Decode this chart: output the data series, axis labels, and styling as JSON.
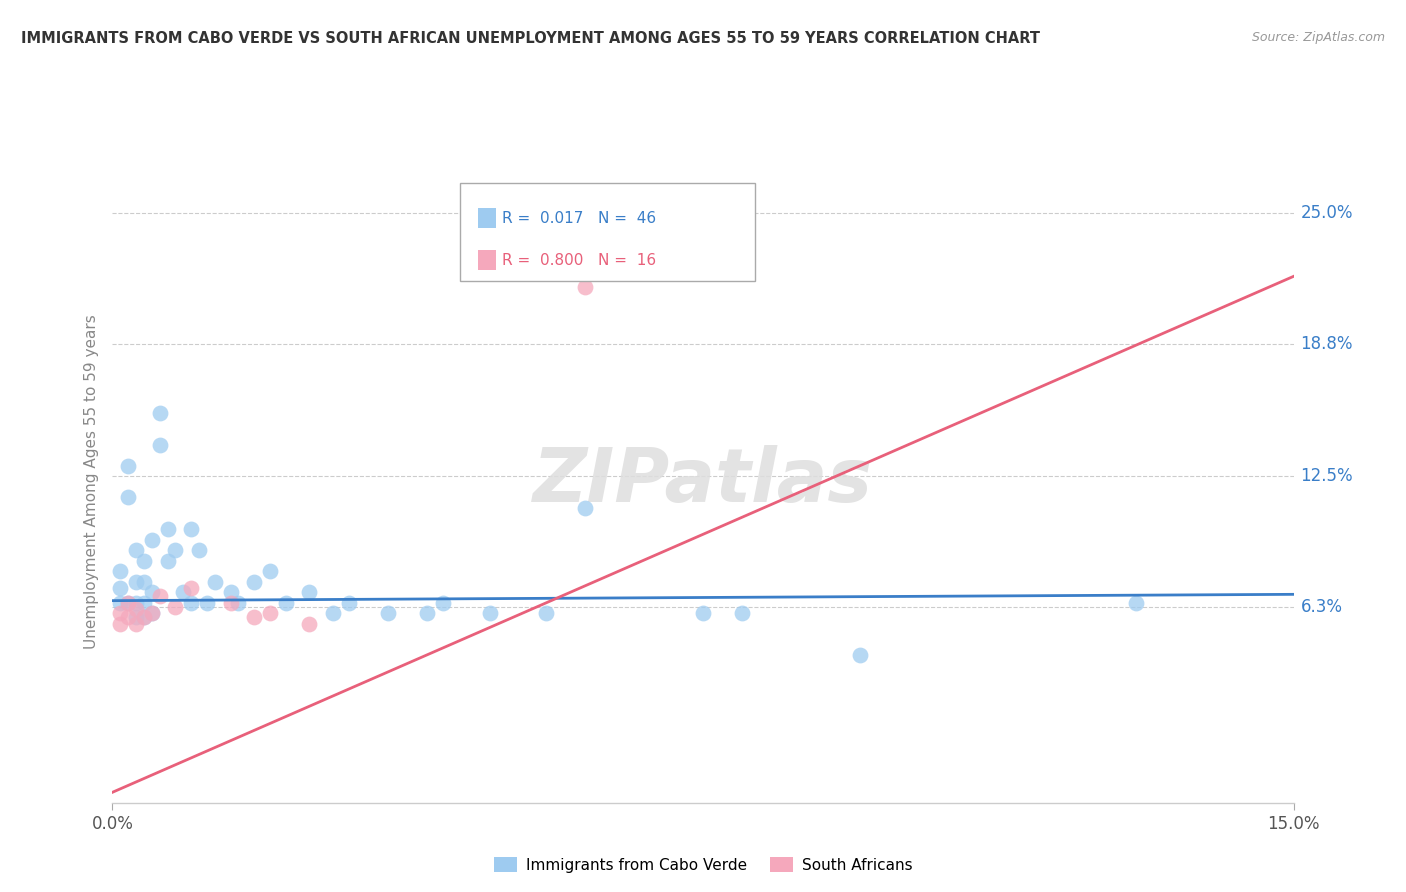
{
  "title": "IMMIGRANTS FROM CABO VERDE VS SOUTH AFRICAN UNEMPLOYMENT AMONG AGES 55 TO 59 YEARS CORRELATION CHART",
  "source": "Source: ZipAtlas.com",
  "ylabel": "Unemployment Among Ages 55 to 59 years",
  "xlim": [
    0.0,
    0.15
  ],
  "ylim": [
    -0.03,
    0.275
  ],
  "yticks": [
    0.063,
    0.125,
    0.188,
    0.25
  ],
  "ytick_labels": [
    "6.3%",
    "12.5%",
    "18.8%",
    "25.0%"
  ],
  "xticks": [
    0.0,
    0.15
  ],
  "xtick_labels": [
    "0.0%",
    "15.0%"
  ],
  "legend_label1": "Immigrants from Cabo Verde",
  "legend_label2": "South Africans",
  "R1": "0.017",
  "N1": "46",
  "R2": "0.800",
  "N2": "16",
  "color_blue": "#9ECBF0",
  "color_pink": "#F5A8BC",
  "line_blue": "#3A7EC8",
  "line_pink": "#E8607A",
  "watermark_color": "#DEDEDE",
  "blue_scatter_x": [
    0.001,
    0.001,
    0.001,
    0.002,
    0.002,
    0.002,
    0.003,
    0.003,
    0.003,
    0.003,
    0.004,
    0.004,
    0.004,
    0.004,
    0.005,
    0.005,
    0.005,
    0.006,
    0.006,
    0.007,
    0.007,
    0.008,
    0.009,
    0.01,
    0.01,
    0.011,
    0.012,
    0.013,
    0.015,
    0.016,
    0.018,
    0.02,
    0.022,
    0.025,
    0.028,
    0.03,
    0.035,
    0.04,
    0.042,
    0.048,
    0.055,
    0.06,
    0.075,
    0.08,
    0.095,
    0.13
  ],
  "blue_scatter_y": [
    0.08,
    0.072,
    0.065,
    0.13,
    0.115,
    0.065,
    0.09,
    0.075,
    0.065,
    0.058,
    0.085,
    0.075,
    0.065,
    0.058,
    0.095,
    0.07,
    0.06,
    0.155,
    0.14,
    0.1,
    0.085,
    0.09,
    0.07,
    0.1,
    0.065,
    0.09,
    0.065,
    0.075,
    0.07,
    0.065,
    0.075,
    0.08,
    0.065,
    0.07,
    0.06,
    0.065,
    0.06,
    0.06,
    0.065,
    0.06,
    0.06,
    0.11,
    0.06,
    0.06,
    0.04,
    0.065
  ],
  "pink_scatter_x": [
    0.001,
    0.001,
    0.002,
    0.002,
    0.003,
    0.003,
    0.004,
    0.005,
    0.006,
    0.008,
    0.01,
    0.015,
    0.018,
    0.02,
    0.025,
    0.06
  ],
  "pink_scatter_y": [
    0.06,
    0.055,
    0.065,
    0.058,
    0.062,
    0.055,
    0.058,
    0.06,
    0.068,
    0.063,
    0.072,
    0.065,
    0.058,
    0.06,
    0.055,
    0.215
  ],
  "blue_line_x": [
    0.0,
    0.15
  ],
  "blue_line_y": [
    0.066,
    0.069
  ],
  "pink_line_x": [
    0.0,
    0.15
  ],
  "pink_line_y": [
    -0.025,
    0.22
  ]
}
